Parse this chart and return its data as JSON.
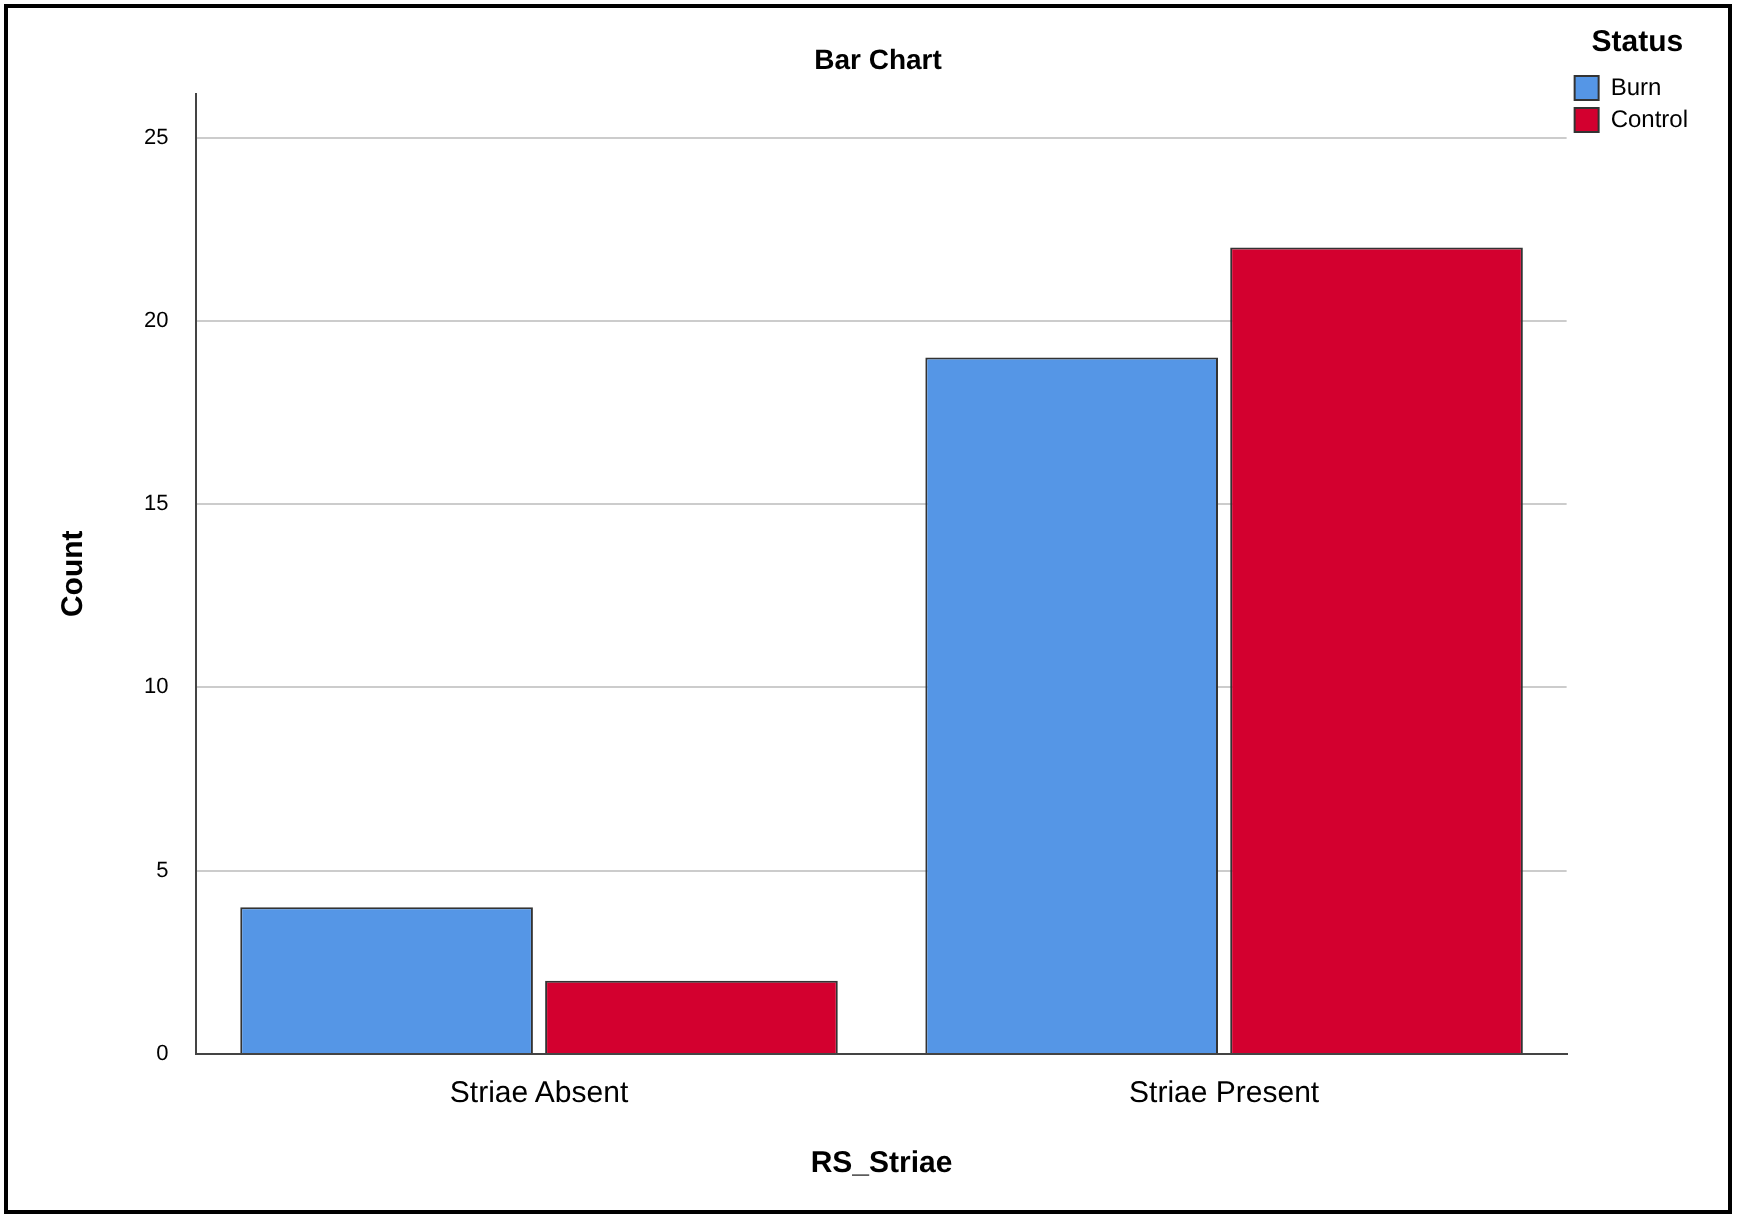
{
  "chart_data": {
    "type": "bar",
    "title": "Bar Chart",
    "xlabel": "RS_Striae",
    "ylabel": "Count",
    "legend_title": "Status",
    "categories": [
      "Striae Absent",
      "Striae Present"
    ],
    "series": [
      {
        "name": "Burn",
        "color": "#5596e6",
        "values": [
          4,
          19
        ]
      },
      {
        "name": "Control",
        "color": "#d3002f",
        "values": [
          2,
          22
        ]
      }
    ],
    "ylim": [
      0,
      26.2
    ],
    "yticks": [
      0,
      5,
      10,
      15,
      20,
      25
    ],
    "grid": "y",
    "legend": "top right"
  }
}
